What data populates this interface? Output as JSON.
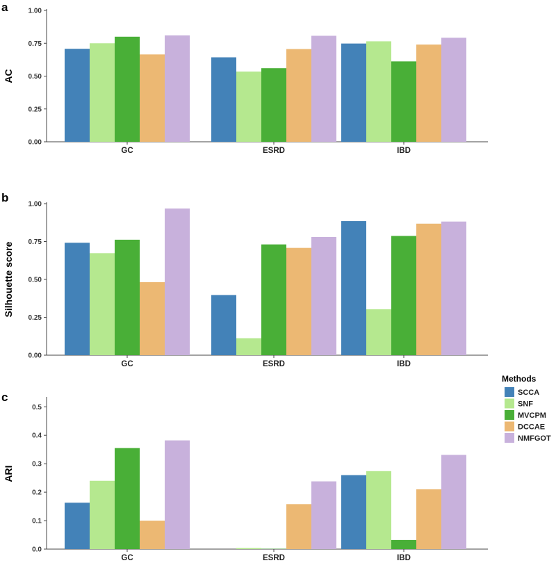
{
  "figure": {
    "legend": {
      "title": "Methods",
      "position": "right",
      "entries": [
        "SCCA",
        "SNF",
        "MVCPM",
        "DCCAE",
        "NMFGOT"
      ]
    },
    "colors": {
      "SCCA": "#4382b8",
      "SNF": "#b5e88f",
      "MVCPM": "#49af37",
      "DCCAE": "#ecb873",
      "NMFGOT": "#c8b1dc"
    }
  },
  "chart_data": [
    {
      "type": "bar",
      "panel": "a",
      "categories": [
        "GC",
        "ESRD",
        "IBD"
      ],
      "series": [
        {
          "name": "SCCA",
          "values": [
            0.708,
            0.643,
            0.748
          ]
        },
        {
          "name": "SNF",
          "values": [
            0.75,
            0.535,
            0.765
          ]
        },
        {
          "name": "MVCPM",
          "values": [
            0.8,
            0.56,
            0.612
          ]
        },
        {
          "name": "DCCAE",
          "values": [
            0.665,
            0.706,
            0.74
          ]
        },
        {
          "name": "NMFGOT",
          "values": [
            0.81,
            0.807,
            0.792
          ]
        }
      ],
      "xlabel": "",
      "ylabel": "AC",
      "ylim": [
        0,
        1.0
      ],
      "yticks": [
        "0.00",
        "0.25",
        "0.50",
        "0.75",
        "1.00"
      ],
      "ytick_values": [
        0,
        0.25,
        0.5,
        0.75,
        1.0
      ],
      "grid": false
    },
    {
      "type": "bar",
      "panel": "b",
      "categories": [
        "GC",
        "ESRD",
        "IBD"
      ],
      "series": [
        {
          "name": "SCCA",
          "values": [
            0.742,
            0.397,
            0.885
          ]
        },
        {
          "name": "SNF",
          "values": [
            0.673,
            0.112,
            0.303
          ]
        },
        {
          "name": "MVCPM",
          "values": [
            0.762,
            0.731,
            0.787
          ]
        },
        {
          "name": "DCCAE",
          "values": [
            0.482,
            0.708,
            0.868
          ]
        },
        {
          "name": "NMFGOT",
          "values": [
            0.968,
            0.78,
            0.882
          ]
        }
      ],
      "xlabel": "",
      "ylabel": "Silhouette score",
      "ylim": [
        0,
        1.0
      ],
      "yticks": [
        "0.00",
        "0.25",
        "0.50",
        "0.75",
        "1.00"
      ],
      "ytick_values": [
        0,
        0.25,
        0.5,
        0.75,
        1.0
      ],
      "grid": false
    },
    {
      "type": "bar",
      "panel": "c",
      "categories": [
        "GC",
        "ESRD",
        "IBD"
      ],
      "series": [
        {
          "name": "SCCA",
          "values": [
            0.163,
            0.0,
            0.26
          ]
        },
        {
          "name": "SNF",
          "values": [
            0.24,
            0.004,
            0.274
          ]
        },
        {
          "name": "MVCPM",
          "values": [
            0.355,
            0.001,
            0.032
          ]
        },
        {
          "name": "DCCAE",
          "values": [
            0.1,
            0.158,
            0.21
          ]
        },
        {
          "name": "NMFGOT",
          "values": [
            0.382,
            0.238,
            0.331
          ]
        }
      ],
      "xlabel": "",
      "ylabel": "ARI",
      "ylim": [
        0,
        0.53
      ],
      "yticks": [
        "0.0",
        "0.1",
        "0.2",
        "0.3",
        "0.4",
        "0.5"
      ],
      "ytick_values": [
        0,
        0.1,
        0.2,
        0.3,
        0.4,
        0.5
      ],
      "grid": false
    }
  ]
}
